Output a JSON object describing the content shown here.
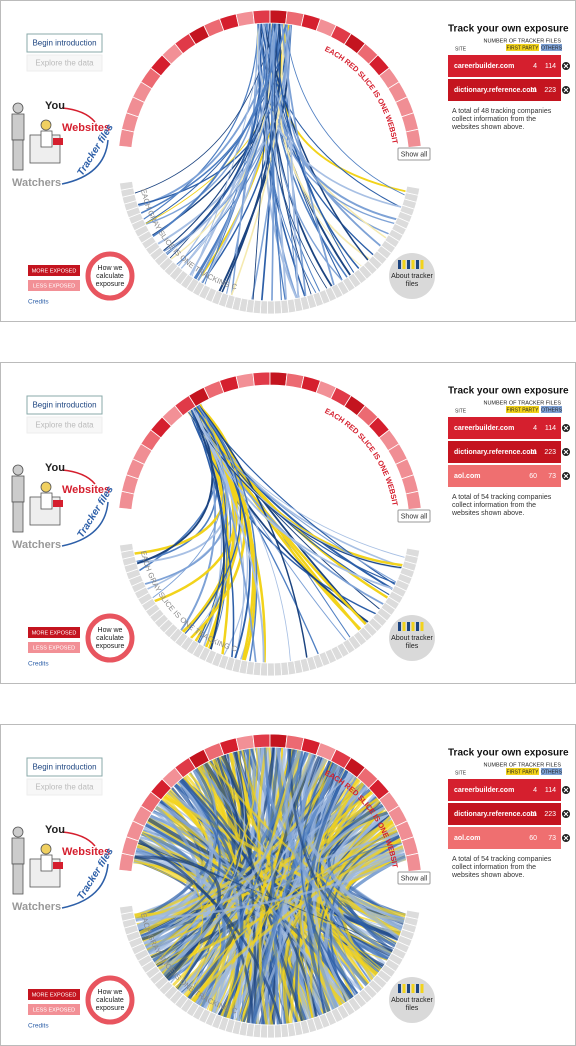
{
  "panels": [
    {
      "intro_button": "Begin introduction",
      "explore_button": "Explore the data",
      "labels": {
        "you": "You",
        "websites": "Websites",
        "tracker_files": "Tracker files",
        "watchers": "Watchers"
      },
      "legend": {
        "more": "MORE EXPOSED",
        "less": "LESS EXPOSED"
      },
      "credits": "Credits",
      "how_button": [
        "How we",
        "calculate",
        "exposure"
      ],
      "about_button": [
        "About tracker",
        "files"
      ],
      "show_all": "Show all",
      "red_caption": "EACH RED SLICE IS ONE WEBSITE",
      "gray_caption": "EACH GRAY SLICE IS ONE TRACKING COMPANY",
      "tracker": {
        "title": "Track your own exposure",
        "header": "NUMBER OF TRACKER FILES",
        "site": "SITE",
        "first_party": "FIRST PARTY",
        "others": "OTHERS",
        "rows": [
          {
            "site": "careerbuilder.com",
            "first_party": 4,
            "others": 114
          },
          {
            "site": "dictionary.reference.com",
            "first_party": 11,
            "others": 223
          }
        ],
        "note": [
          "A total of 48 tracking companies",
          "collect information from the",
          "websites shown above."
        ]
      }
    },
    {
      "intro_button": "Begin introduction",
      "explore_button": "Explore the data",
      "labels": {
        "you": "You",
        "websites": "Websites",
        "tracker_files": "Tracker files",
        "watchers": "Watchers"
      },
      "legend": {
        "more": "MORE EXPOSED",
        "less": "LESS EXPOSED"
      },
      "credits": "Credits",
      "how_button": [
        "How we",
        "calculate",
        "exposure"
      ],
      "about_button": [
        "About tracker",
        "files"
      ],
      "show_all": "Show all",
      "red_caption": "EACH RED SLICE IS ONE WEBSITE",
      "gray_caption": "EACH GRAY SLICE IS ONE TRACKING COMPANY",
      "tracker": {
        "title": "Track your own exposure",
        "header": "NUMBER OF TRACKER FILES",
        "site": "SITE",
        "first_party": "FIRST PARTY",
        "others": "OTHERS",
        "rows": [
          {
            "site": "careerbuilder.com",
            "first_party": 4,
            "others": 114
          },
          {
            "site": "dictionary.reference.com",
            "first_party": 11,
            "others": 223
          },
          {
            "site": "aol.com",
            "first_party": 60,
            "others": 73
          }
        ],
        "note": [
          "A total of 54 tracking companies",
          "collect information from the",
          "websites shown above."
        ]
      }
    },
    {
      "intro_button": "Begin introduction",
      "explore_button": "Explore the data",
      "labels": {
        "you": "You",
        "websites": "Websites",
        "tracker_files": "Tracker files",
        "watchers": "Watchers"
      },
      "legend": {
        "more": "MORE EXPOSED",
        "less": "LESS EXPOSED"
      },
      "credits": "Credits",
      "how_button": [
        "How we",
        "calculate",
        "exposure"
      ],
      "about_button": [
        "About tracker",
        "files"
      ],
      "show_all": "Show all",
      "red_caption": "EACH RED SLICE IS ONE WEBSITE",
      "gray_caption": "EACH GRAY SLICE IS ONE TRACKING COMPANY",
      "tracker": {
        "title": "Track your own exposure",
        "header": "NUMBER OF TRACKER FILES",
        "site": "SITE",
        "first_party": "FIRST PARTY",
        "others": "OTHERS",
        "rows": [
          {
            "site": "careerbuilder.com",
            "first_party": 4,
            "others": 114
          },
          {
            "site": "dictionary.reference.com",
            "first_party": 11,
            "others": 223
          },
          {
            "site": "aol.com",
            "first_party": 60,
            "others": 73
          }
        ],
        "note": [
          "A total of 54 tracking companies",
          "collect information from the",
          "websites shown above."
        ]
      }
    }
  ]
}
